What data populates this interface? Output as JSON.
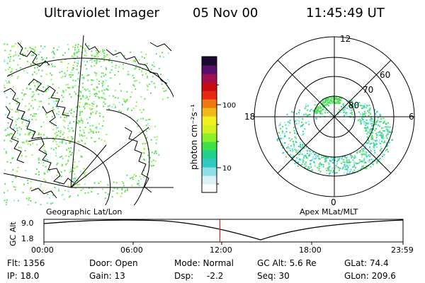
{
  "header": {
    "instrument": "Ultraviolet Imager",
    "date": "05 Nov 00",
    "time": "11:45:49 UT"
  },
  "colorbar": {
    "label": "photon cm⁻²s⁻¹",
    "ticks": [
      "100",
      "10"
    ],
    "colors": [
      "#ffffff",
      "#d8f2f4",
      "#8fe0e6",
      "#33c9c2",
      "#21d08a",
      "#3ee04a",
      "#8af02a",
      "#d2f022",
      "#f2f01e",
      "#f2b81a",
      "#f07810",
      "#e82810",
      "#c80a14",
      "#a01050",
      "#5a0c6a",
      "#1a0830"
    ]
  },
  "geo_panel": {
    "label": "Geographic Lat/Lon",
    "aurora_color": "#5ee05a",
    "aurora_accent": "#7ff0e6"
  },
  "polar_panel": {
    "label": "Apex MLat/MLT",
    "mlt_labels": {
      "top": "12",
      "left": "18",
      "right": "6",
      "bottom": "0"
    },
    "lat_labels": [
      "60",
      "70",
      "80"
    ]
  },
  "altitude_plot": {
    "ylabel": "GC Alt",
    "ymax": "9.0",
    "ymin": "1.8",
    "x_ticks": [
      "00:00",
      "06:00",
      "12:00",
      "18:00",
      "23:59"
    ],
    "marker_color": "#e02020",
    "marker_time_fraction": 0.49
  },
  "info": {
    "row1": [
      "Flt: 1356",
      "Door: Open",
      "Mode: Normal",
      "GC Alt: 5.6 Re",
      "GLat: 74.4"
    ],
    "row2": [
      "IP: 18.0",
      "Gain: 13",
      "Dsp:",
      "-2.2",
      "Seq: 30",
      "GLon: 209.6"
    ]
  }
}
